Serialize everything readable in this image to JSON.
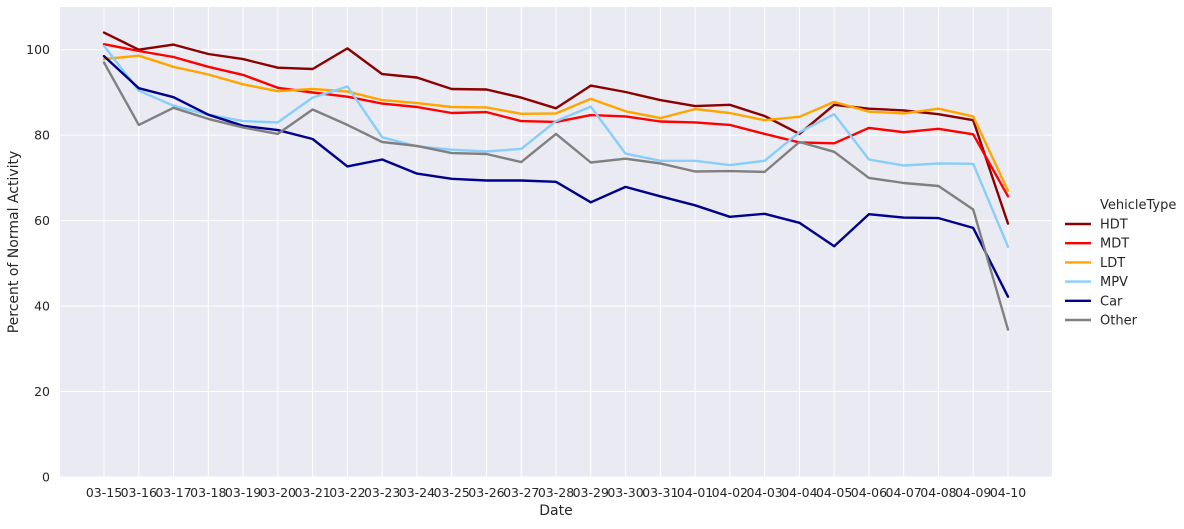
{
  "chart_data": {
    "type": "line",
    "xlabel": "Date",
    "ylabel": "Percent of Normal Activity",
    "ylim": [
      0,
      110
    ],
    "yticks": [
      0,
      20,
      40,
      60,
      80,
      100
    ],
    "grid": true,
    "background": "#EAEAF2",
    "legend_title": "VehicleType",
    "legend_position": "right",
    "x": [
      "03-15",
      "03-16",
      "03-17",
      "03-18",
      "03-19",
      "03-20",
      "03-21",
      "03-22",
      "03-23",
      "03-24",
      "03-25",
      "03-26",
      "03-27",
      "03-28",
      "03-29",
      "03-30",
      "03-31",
      "04-01",
      "04-02",
      "04-03",
      "04-04",
      "04-05",
      "04-06",
      "04-07",
      "04-08",
      "04-09",
      "04-10"
    ],
    "series": [
      {
        "name": "HDT",
        "color": "#8B0000",
        "values": [
          104,
          100,
          101.2,
          99,
          97.8,
          95.8,
          95.5,
          100.3,
          94.3,
          93.5,
          90.8,
          90.7,
          88.8,
          86.3,
          91.6,
          90.1,
          88.2,
          86.8,
          87.1,
          84.5,
          80.3,
          87.1,
          86.2,
          85.8,
          84.9,
          83.5,
          59.3
        ]
      },
      {
        "name": "MDT",
        "color": "#FF0000",
        "values": [
          101.3,
          99.7,
          98.3,
          96,
          94.1,
          91.1,
          90,
          89,
          87.4,
          86.6,
          85.2,
          85.4,
          83.3,
          83.1,
          84.7,
          84.4,
          83.2,
          83,
          82.4,
          80.3,
          78.3,
          78.1,
          81.7,
          80.7,
          81.5,
          80.2,
          65.7
        ]
      },
      {
        "name": "LDT",
        "color": "#FFA500",
        "values": [
          97.8,
          98.6,
          96,
          94.2,
          91.9,
          90.3,
          90.8,
          90.2,
          88.2,
          87.5,
          86.6,
          86.5,
          85,
          85.1,
          88.5,
          85.6,
          84,
          86.1,
          85.2,
          83.5,
          84.3,
          87.8,
          85.5,
          85.1,
          86.2,
          84.4,
          67
        ]
      },
      {
        "name": "MPV",
        "color": "#87CEFA",
        "values": [
          100.9,
          90.4,
          86.9,
          84.8,
          83.3,
          83,
          88.8,
          91.4,
          79.5,
          77.4,
          76.6,
          76.2,
          76.8,
          83.3,
          86.7,
          75.7,
          74,
          74,
          73,
          74,
          80.7,
          84.9,
          74.3,
          72.9,
          73.4,
          73.3,
          53.9
        ]
      },
      {
        "name": "Car",
        "color": "#00008B",
        "values": [
          98.5,
          91,
          88.9,
          84.8,
          82.2,
          81.2,
          79.1,
          72.7,
          74.3,
          71,
          69.8,
          69.4,
          69.4,
          69.1,
          64.3,
          67.9,
          65.7,
          63.6,
          60.9,
          61.6,
          59.5,
          54,
          61.5,
          60.7,
          60.6,
          58.3,
          42.2
        ]
      },
      {
        "name": "Other",
        "color": "#808080",
        "values": [
          97,
          82.4,
          86.4,
          83.8,
          81.8,
          80.3,
          86,
          82.4,
          78.4,
          77.5,
          75.8,
          75.6,
          73.7,
          80.3,
          73.6,
          74.5,
          73.4,
          71.5,
          71.6,
          71.4,
          78.4,
          76.1,
          70,
          68.8,
          68.1,
          62.6,
          34.5
        ]
      }
    ]
  }
}
